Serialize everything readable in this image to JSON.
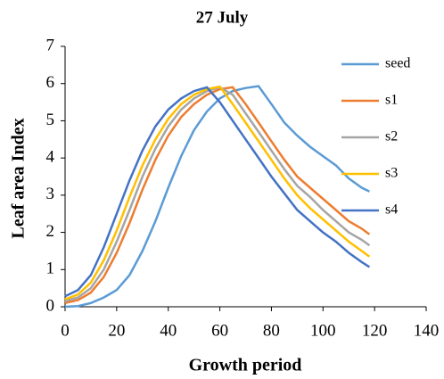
{
  "chart_data": {
    "type": "line",
    "title": "27 July",
    "x_label": "Growth period",
    "y_label": "Leaf area Index",
    "x": [
      0,
      5,
      10,
      15,
      20,
      25,
      30,
      35,
      40,
      45,
      50,
      55,
      60,
      65,
      70,
      75,
      80,
      85,
      90,
      95,
      100,
      105,
      110,
      115,
      118
    ],
    "series": [
      {
        "name": "seed",
        "color": "#5b9bd5",
        "values": [
          0,
          0.02,
          0.1,
          0.25,
          0.45,
          0.85,
          1.5,
          2.3,
          3.2,
          4.05,
          4.75,
          5.25,
          5.6,
          5.8,
          5.88,
          5.93,
          5.45,
          4.95,
          4.6,
          4.3,
          4.05,
          3.8,
          3.45,
          3.2,
          3.1
        ]
      },
      {
        "name": "s1",
        "color": "#ed7d31",
        "values": [
          0.1,
          0.18,
          0.38,
          0.8,
          1.45,
          2.25,
          3.15,
          3.95,
          4.6,
          5.1,
          5.45,
          5.7,
          5.85,
          5.9,
          5.45,
          4.95,
          4.45,
          3.95,
          3.5,
          3.2,
          2.9,
          2.6,
          2.3,
          2.1,
          1.95
        ]
      },
      {
        "name": "s2",
        "color": "#a5a5a5",
        "values": [
          0.15,
          0.25,
          0.5,
          1.0,
          1.75,
          2.6,
          3.5,
          4.25,
          4.85,
          5.3,
          5.6,
          5.8,
          5.9,
          5.7,
          5.2,
          4.7,
          4.2,
          3.7,
          3.25,
          2.95,
          2.6,
          2.3,
          2.0,
          1.8,
          1.65
        ]
      },
      {
        "name": "s3",
        "color": "#ffc000",
        "values": [
          0.2,
          0.33,
          0.65,
          1.25,
          2.05,
          2.95,
          3.8,
          4.5,
          5.05,
          5.45,
          5.7,
          5.85,
          5.92,
          5.45,
          4.95,
          4.45,
          3.95,
          3.45,
          3.0,
          2.65,
          2.35,
          2.05,
          1.75,
          1.5,
          1.35
        ]
      },
      {
        "name": "s4",
        "color": "#4472c4",
        "values": [
          0.28,
          0.45,
          0.85,
          1.6,
          2.5,
          3.4,
          4.2,
          4.85,
          5.3,
          5.6,
          5.8,
          5.9,
          5.5,
          5.0,
          4.5,
          4.0,
          3.5,
          3.05,
          2.6,
          2.3,
          2.0,
          1.75,
          1.45,
          1.2,
          1.07
        ]
      }
    ],
    "xlim": [
      0,
      140
    ],
    "xticks": [
      0,
      20,
      40,
      60,
      80,
      100,
      120,
      140
    ],
    "ylim": [
      0,
      7
    ],
    "yticks": [
      0,
      1,
      2,
      3,
      4,
      5,
      6,
      7
    ],
    "grid": false,
    "legend": "right"
  }
}
